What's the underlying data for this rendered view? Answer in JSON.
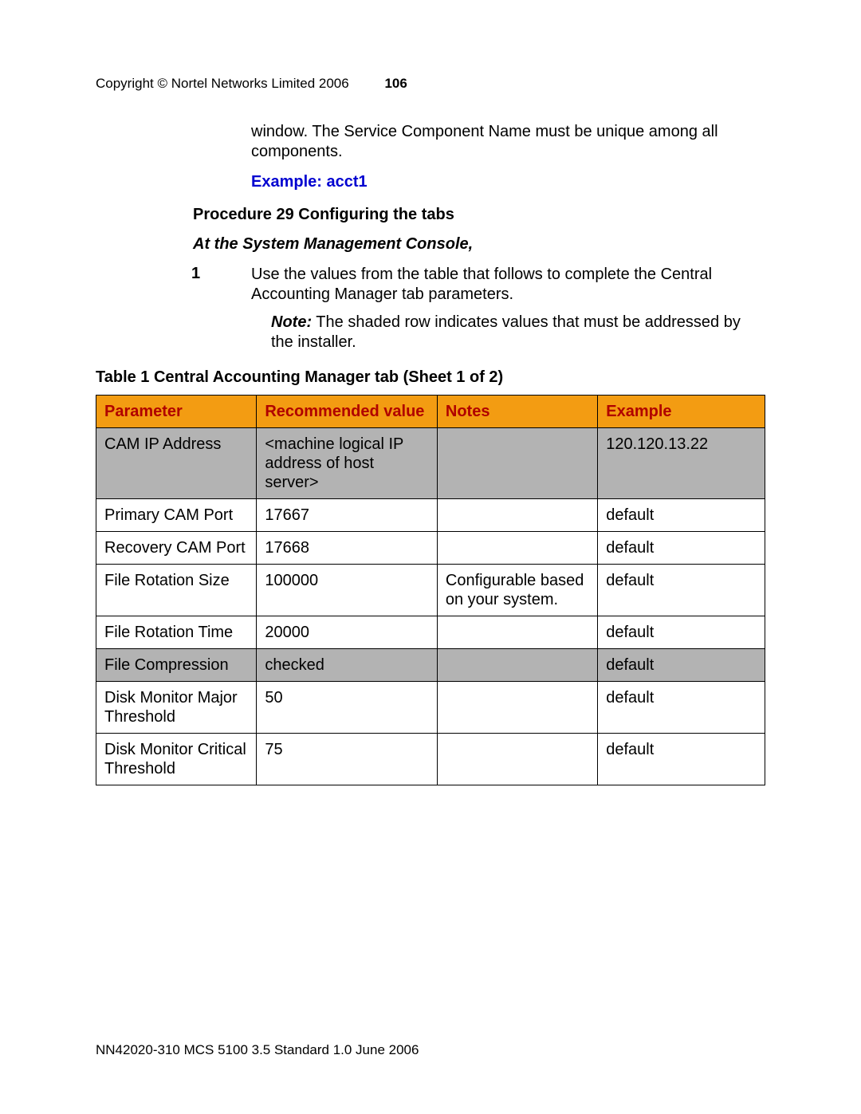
{
  "header": {
    "copyright": "Copyright © Nortel Networks Limited 2006",
    "page_number": "106"
  },
  "intro_text": "window. The Service Component Name must be unique among all components.",
  "example": {
    "label": "Example:  acct1",
    "color": "#0000d0"
  },
  "procedure": {
    "title": "Procedure 29  Configuring the tabs",
    "sublocation": "At the System Management Console,",
    "step_number": "1",
    "step_text": "Use the values from the table that follows to complete the Central Accounting Manager tab parameters.",
    "note_label": "Note:",
    "note_text": "  The shaded row indicates values that must be addressed by the installer."
  },
  "table": {
    "title": "Table 1  Central Accounting Manager tab (Sheet 1 of 2)",
    "header_bg": "#f39c12",
    "header_fg": "#b00000",
    "shaded_bg": "#b3b3b3",
    "columns": [
      "Parameter",
      "Recommended value",
      "Notes",
      "Example"
    ],
    "col_widths": [
      "24%",
      "27%",
      "24%",
      "25%"
    ],
    "rows": [
      {
        "shaded": true,
        "cells": [
          "CAM IP Address",
          "<machine logical IP address of host server>",
          "",
          "120.120.13.22"
        ]
      },
      {
        "shaded": false,
        "cells": [
          "Primary CAM Port",
          "17667",
          "",
          "default"
        ]
      },
      {
        "shaded": false,
        "cells": [
          "Recovery CAM Port",
          "17668",
          "",
          "default"
        ]
      },
      {
        "shaded": false,
        "cells": [
          "File Rotation Size",
          "100000",
          "Configurable based on your system.",
          "default"
        ]
      },
      {
        "shaded": false,
        "cells": [
          "File Rotation Time",
          "20000",
          "",
          "default"
        ]
      },
      {
        "shaded": true,
        "cells": [
          "File Compression",
          "checked",
          "",
          "default"
        ]
      },
      {
        "shaded": false,
        "cells": [
          "Disk Monitor Major Threshold",
          "50",
          "",
          "default"
        ]
      },
      {
        "shaded": false,
        "cells": [
          "Disk Monitor Critical Threshold",
          "75",
          "",
          "default"
        ]
      }
    ]
  },
  "footer": {
    "text": "NN42020-310   MCS 5100 3.5   Standard   1.0   June 2006"
  }
}
